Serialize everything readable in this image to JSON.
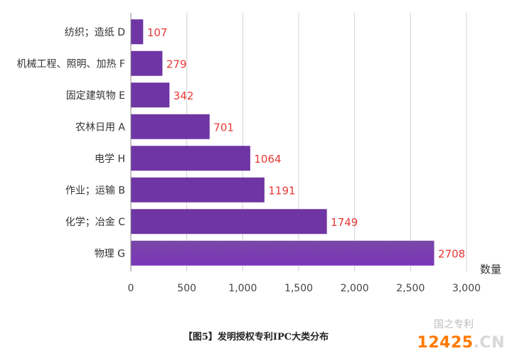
{
  "chart_data": {
    "type": "bar",
    "orientation": "horizontal",
    "categories": [
      "纺织；造纸 D",
      "机械工程、照明、加热 F",
      "固定建筑物 E",
      "农林日用 A",
      "电学 H",
      "作业；运输 B",
      "化学；冶金 C",
      "物理 G"
    ],
    "values": [
      107,
      279,
      342,
      701,
      1064,
      1191,
      1749,
      2708
    ],
    "value_labels": [
      "107",
      "279",
      "342",
      "701",
      "1064",
      "1191",
      "1749",
      "2708"
    ],
    "xlabel": "数量",
    "xlim": [
      0,
      3000
    ],
    "xticks": [
      0,
      500,
      1000,
      1500,
      2000,
      2500,
      3000
    ],
    "xtick_labels": [
      "0",
      "500",
      "1,000",
      "1,500",
      "2,000",
      "2,500",
      "3,000"
    ],
    "grid": true,
    "colors": {
      "bar": "#6f35a4",
      "bar_top": "#7a48a8",
      "bar_bottom": "#7b35b8",
      "value_label": "#e53935",
      "gridline": "#d0d0d0"
    }
  },
  "caption": "【图5】发明授权专利IPC大类分布",
  "watermark": {
    "text": "国之专利",
    "site_number": "12425",
    "site_suffix": ".CN"
  }
}
